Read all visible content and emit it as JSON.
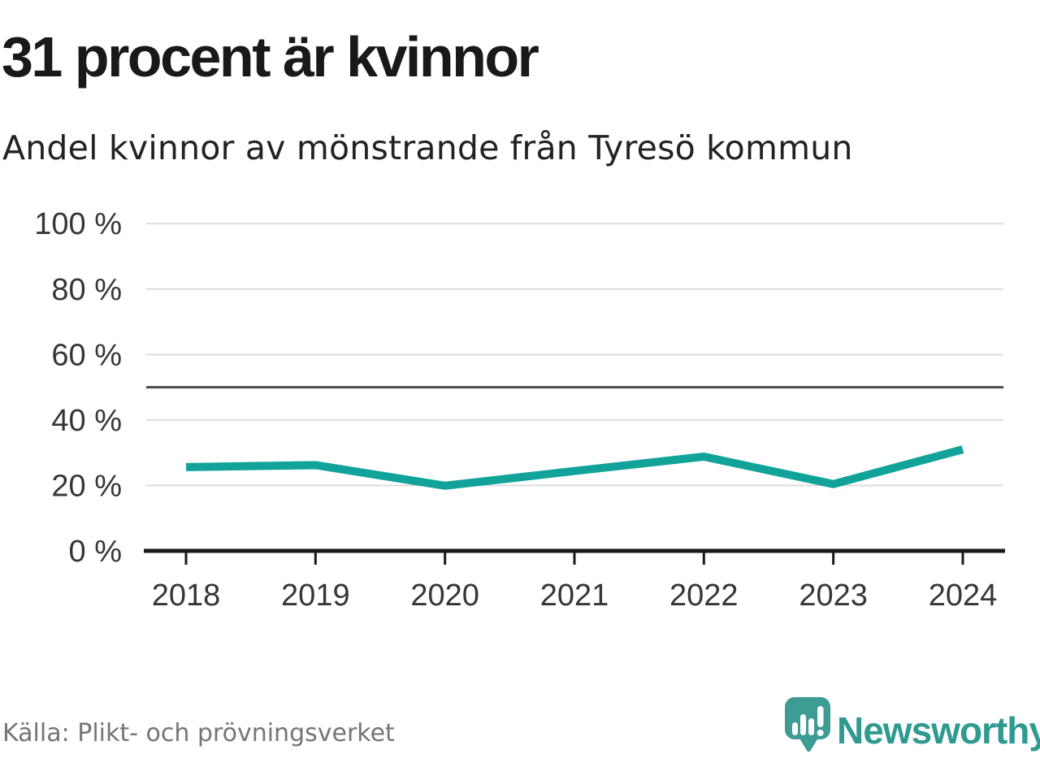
{
  "header": {
    "title": "31 procent är kvinnor",
    "subtitle": "Andel kvinnor av mönstrande från Tyresö kommun"
  },
  "chart_data": {
    "type": "line",
    "title": "31 procent är kvinnor",
    "subtitle": "Andel kvinnor av mönstrande från Tyresö kommun",
    "categories": [
      "2018",
      "2019",
      "2020",
      "2021",
      "2022",
      "2023",
      "2024"
    ],
    "values": [
      25.6,
      26.2,
      19.9,
      24.4,
      28.8,
      20.4,
      31
    ],
    "unit": "%",
    "ylim": [
      0,
      100
    ],
    "yticks": [
      0,
      20,
      40,
      60,
      80,
      100
    ],
    "ytick_label_suffix": " %",
    "reference_line_y": 50,
    "grid": true,
    "legend": "none",
    "line_color": "#11a39a"
  },
  "colors": {
    "accent_teal": "#11a39a",
    "logo_teal": "#3d9c93",
    "brand_text_teal": "#2f9a90",
    "gridline": "#dcdcdc",
    "reference_line": "#4d4d4d",
    "axis": "#1a1a1a",
    "axis_label": "#363636",
    "title_text": "#191919",
    "source_text": "#757575",
    "background": "#ffffff"
  },
  "footer": {
    "source": "Källa: Plikt- och prövningsverket",
    "brand": "Newsworthy"
  },
  "icons": {
    "logo_badge": "newsworthy-speech-bubble-bar-chart-icon"
  }
}
